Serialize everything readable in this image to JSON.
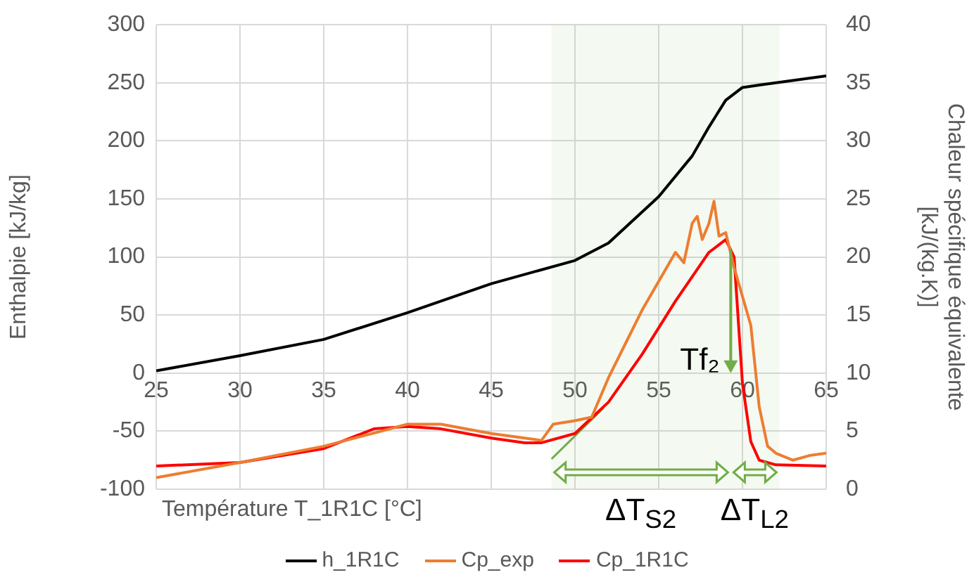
{
  "chart_data": {
    "type": "line",
    "xlabel": "Température T_1R1C [°C]",
    "ylabel": "Enthalpie [kJ/kg]",
    "y2label": "Chaleur spécifique équivalente [kJ/(kg.K)]",
    "xlim": [
      25,
      65
    ],
    "xticks": [
      25,
      30,
      35,
      40,
      45,
      50,
      55,
      60,
      65
    ],
    "ylim": [
      -100,
      300
    ],
    "yticks": [
      -100,
      -50,
      0,
      50,
      100,
      150,
      200,
      250,
      300
    ],
    "y2lim": [
      0,
      40
    ],
    "y2ticks": [
      0,
      5,
      10,
      15,
      20,
      25,
      30,
      35,
      40
    ],
    "grid": true,
    "legend": "bottom",
    "marker": "none",
    "line_style": "solid",
    "series": [
      {
        "name": "h_1R1C",
        "color": "#000000",
        "x": [
          25,
          30,
          35,
          40,
          45,
          50,
          52,
          55,
          57,
          58,
          59,
          60,
          61,
          65
        ],
        "values": [
          2,
          15,
          29,
          52,
          77,
          97,
          112,
          152,
          187,
          212,
          235,
          246,
          248,
          256
        ]
      },
      {
        "name": "Cp_exp",
        "color": "#ed7d31",
        "axis": "y2",
        "x": [
          25,
          30,
          35,
          40,
          42,
          45,
          47,
          48,
          48.7,
          50,
          51,
          52,
          53,
          54,
          55,
          56,
          56.5,
          57,
          57.3,
          57.6,
          58,
          58.3,
          58.6,
          59,
          59.5,
          60,
          60.5,
          61,
          61.5,
          62,
          63,
          64,
          65
        ],
        "values": [
          1,
          2.3,
          3.7,
          5.6,
          5.6,
          4.8,
          4.4,
          4.2,
          5.6,
          5.9,
          6.2,
          9.6,
          12.5,
          15.4,
          17.9,
          20.4,
          19.5,
          22.9,
          23.5,
          21.5,
          22.9,
          24.8,
          21.8,
          22.1,
          19.1,
          16.6,
          14.1,
          7.1,
          3.7,
          3.1,
          2.5,
          2.9,
          3.1
        ]
      },
      {
        "name": "Cp_1R1C",
        "color": "#ff0000",
        "axis": "y2",
        "x": [
          25,
          30,
          35,
          38,
          40,
          42,
          45,
          47,
          48,
          50,
          52,
          54,
          56,
          58,
          59,
          59.5,
          60,
          60.5,
          61,
          62,
          65
        ],
        "values": [
          2,
          2.3,
          3.5,
          5.2,
          5.4,
          5.2,
          4.4,
          4,
          4,
          4.8,
          7.5,
          11.6,
          16.2,
          20.4,
          21.5,
          20,
          9.1,
          4.1,
          2.5,
          2.1,
          2
        ]
      },
      {
        "color": "#70ad47",
        "axis": "y2",
        "x": [
          48.6,
          51.7
        ],
        "values": [
          2.6,
          7
        ]
      }
    ],
    "ref_lines": [
      {
        "axis": "x",
        "value": 59.3,
        "label": "Tf₂",
        "color": "#70ad47"
      }
    ],
    "bands": [
      {
        "axis": "x",
        "from": 48.6,
        "to": 59.3,
        "label": "ΔT$_{S2}$",
        "color": "#70ad47"
      },
      {
        "axis": "x",
        "from": 59.3,
        "to": 62.2,
        "label": "ΔT$_{L2}$",
        "color": "#70ad47"
      }
    ]
  }
}
